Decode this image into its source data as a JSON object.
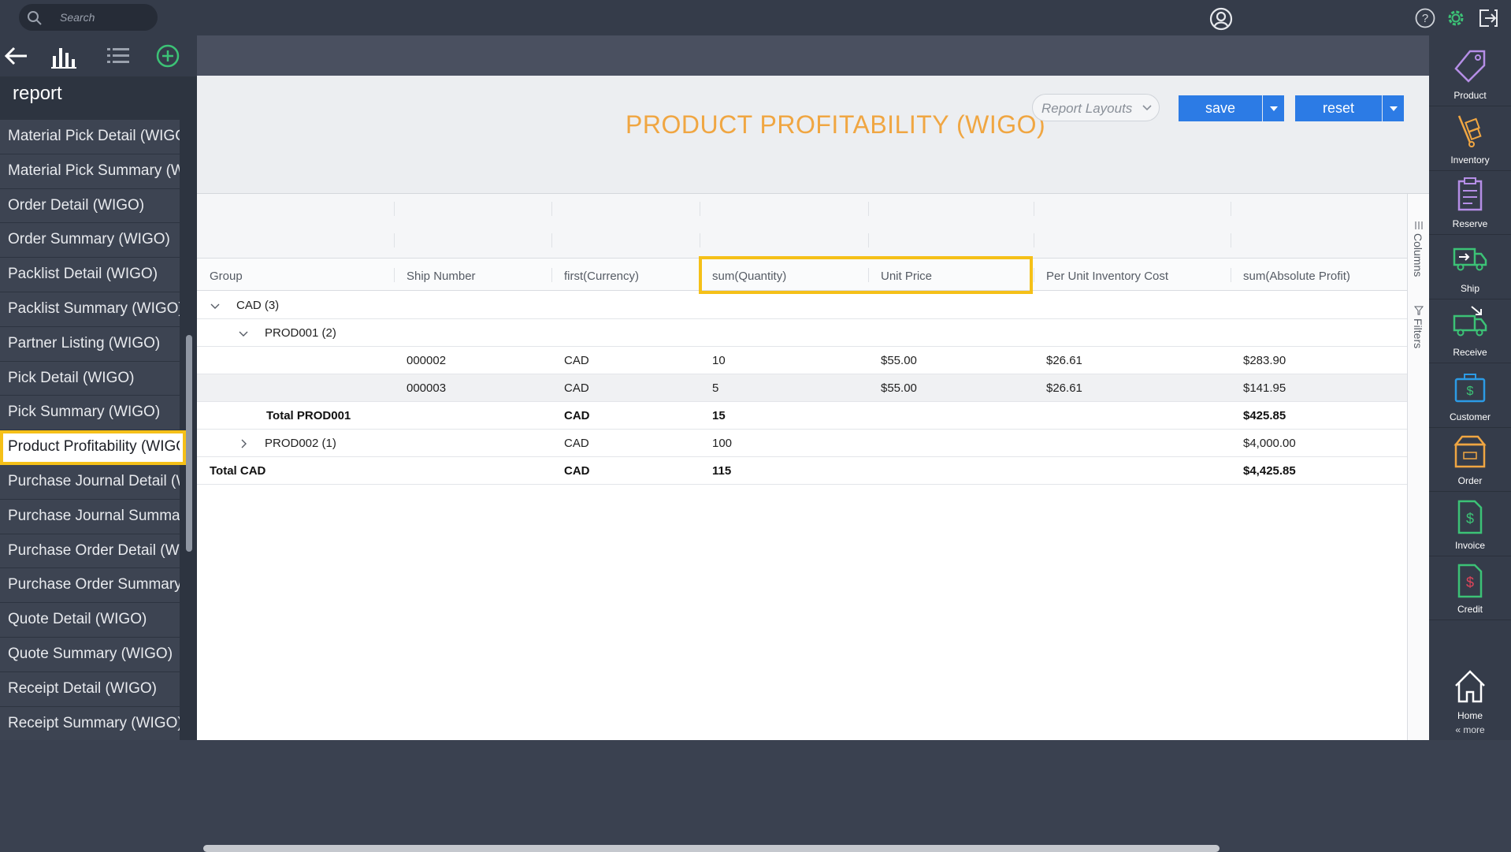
{
  "search": {
    "placeholder": "Search"
  },
  "sidebar": {
    "title": "report",
    "items": [
      {
        "label": "Material Pick Detail (WIGO)"
      },
      {
        "label": "Material Pick Summary (WIGO)"
      },
      {
        "label": "Order Detail (WIGO)"
      },
      {
        "label": "Order Summary (WIGO)"
      },
      {
        "label": "Packlist Detail (WIGO)"
      },
      {
        "label": "Packlist Summary (WIGO)"
      },
      {
        "label": "Partner Listing (WIGO)"
      },
      {
        "label": "Pick Detail (WIGO)"
      },
      {
        "label": "Pick Summary (WIGO)"
      },
      {
        "label": "Product Profitability (WIGO)",
        "active": true
      },
      {
        "label": "Purchase Journal Detail (WIGO)"
      },
      {
        "label": "Purchase Journal Summary (WIGO)"
      },
      {
        "label": "Purchase Order Detail (WIGO)"
      },
      {
        "label": "Purchase Order Summary (WIGO)"
      },
      {
        "label": "Quote Detail (WIGO)"
      },
      {
        "label": "Quote Summary (WIGO)"
      },
      {
        "label": "Receipt Detail (WIGO)"
      },
      {
        "label": "Receipt Summary (WIGO)"
      }
    ]
  },
  "report": {
    "title": "PRODUCT PROFITABILITY (WIGO)",
    "layouts_placeholder": "Report Layouts",
    "save_label": "save",
    "reset_label": "reset"
  },
  "grid": {
    "columns": [
      "Group",
      "Ship Number",
      "first(Currency)",
      "sum(Quantity)",
      "Unit Price",
      "Per Unit Inventory Cost",
      "sum(Absolute Profit)"
    ],
    "side_tabs": {
      "columns": "Columns",
      "filters": "Filters"
    },
    "rows": [
      {
        "group": "CAD (3)",
        "level": 0,
        "expanded": true,
        "ship": "",
        "currency": "",
        "qty": "",
        "price": "",
        "cost": "",
        "profit": ""
      },
      {
        "group": "PROD001 (2)",
        "level": 1,
        "expanded": true,
        "ship": "",
        "currency": "",
        "qty": "",
        "price": "",
        "cost": "",
        "profit": ""
      },
      {
        "group": "",
        "level": 2,
        "ship": "000002",
        "currency": "CAD",
        "qty": "10",
        "price": "$55.00",
        "cost": "$26.61",
        "profit": "$283.90"
      },
      {
        "group": "",
        "level": 2,
        "ship": "000003",
        "currency": "CAD",
        "qty": "5",
        "price": "$55.00",
        "cost": "$26.61",
        "profit": "$141.95"
      },
      {
        "group": "Total PROD001",
        "level": 1,
        "total": true,
        "ship": "",
        "currency": "CAD",
        "qty": "15",
        "price": "",
        "cost": "",
        "profit": "$425.85"
      },
      {
        "group": "PROD002 (1)",
        "level": 1,
        "expanded": false,
        "ship": "",
        "currency": "CAD",
        "qty": "100",
        "price": "",
        "cost": "",
        "profit": "$4,000.00"
      },
      {
        "group": "Total CAD",
        "level": 0,
        "total": true,
        "ship": "",
        "currency": "CAD",
        "qty": "115",
        "price": "",
        "cost": "",
        "profit": "$4,425.85"
      }
    ]
  },
  "rnav": {
    "items": [
      {
        "label": "Product",
        "icon": "tag-icon"
      },
      {
        "label": "Inventory",
        "icon": "hand-truck-icon"
      },
      {
        "label": "Reserve",
        "icon": "clipboard-icon"
      },
      {
        "label": "Ship",
        "icon": "truck-out-icon"
      },
      {
        "label": "Receive",
        "icon": "truck-in-icon"
      },
      {
        "label": "Customer",
        "icon": "briefcase-dollar-icon"
      },
      {
        "label": "Order",
        "icon": "box-icon"
      },
      {
        "label": "Invoice",
        "icon": "invoice-icon"
      },
      {
        "label": "Credit",
        "icon": "credit-icon"
      },
      {
        "label": "Home",
        "icon": "home-icon"
      }
    ],
    "more_label": "« more"
  },
  "colors": {
    "accent": "#f0a642",
    "highlight": "#f5c018",
    "primary": "#2c7be5"
  }
}
